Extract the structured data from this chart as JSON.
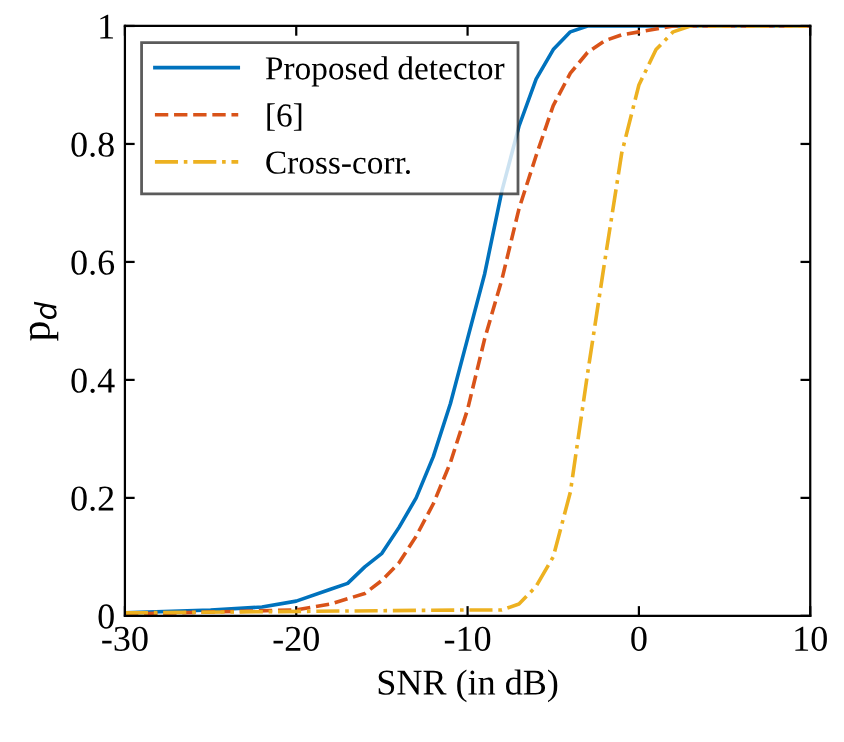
{
  "chart_data": {
    "type": "line",
    "xlabel": "SNR (in dB)",
    "ylabel": "p$_{d}$",
    "xlim": [
      -30,
      10
    ],
    "ylim": [
      0,
      1
    ],
    "xticks": [
      -30,
      -20,
      -10,
      0,
      10
    ],
    "yticks": [
      0,
      0.2,
      0.4,
      0.6,
      0.8,
      1
    ],
    "grid": false,
    "legend": "top left",
    "marker": "none",
    "series": [
      {
        "name": "Proposed detector",
        "color": "#0072bd",
        "line_style": "solid",
        "x": [
          -30,
          -25,
          -22,
          -20,
          -18,
          -17,
          -16,
          -15,
          -14,
          -13,
          -12,
          -11,
          -10,
          -9,
          -8,
          -7,
          -6,
          -5,
          -4,
          -3,
          0,
          10
        ],
        "values": [
          0.005,
          0.01,
          0.015,
          0.025,
          0.045,
          0.055,
          0.083,
          0.106,
          0.15,
          0.2,
          0.27,
          0.36,
          0.47,
          0.58,
          0.72,
          0.83,
          0.91,
          0.96,
          0.99,
          1.0,
          1.0,
          1.0
        ]
      },
      {
        "name": "[6]",
        "color": "#d95319",
        "line_style": "dashed",
        "x": [
          -30,
          -20,
          -18,
          -16,
          -15,
          -14,
          -13,
          -12,
          -11,
          -10,
          -9,
          -8,
          -7,
          -6,
          -5,
          -4,
          -3,
          -2,
          -1,
          0,
          2,
          10
        ],
        "values": [
          0.003,
          0.01,
          0.02,
          0.038,
          0.06,
          0.09,
          0.135,
          0.19,
          0.26,
          0.35,
          0.47,
          0.57,
          0.69,
          0.78,
          0.865,
          0.92,
          0.955,
          0.975,
          0.985,
          0.99,
          1.0,
          1.0
        ]
      },
      {
        "name": "Cross-corr.",
        "color": "#edb120",
        "line_style": "dashdot",
        "x": [
          -30,
          -10,
          -8,
          -7,
          -6,
          -5,
          -4,
          -3,
          -2,
          -1,
          0,
          1,
          2,
          3,
          10
        ],
        "values": [
          0.005,
          0.01,
          0.01,
          0.02,
          0.05,
          0.1,
          0.21,
          0.41,
          0.6,
          0.785,
          0.9,
          0.96,
          0.99,
          1.0,
          1.0
        ]
      }
    ]
  }
}
